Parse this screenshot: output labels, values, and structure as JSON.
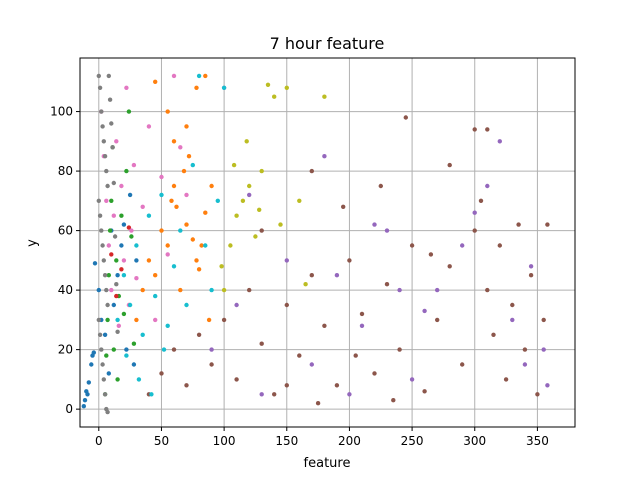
{
  "chart_data": {
    "type": "scatter",
    "title": "7 hour feature",
    "xlabel": "feature",
    "ylabel": "y",
    "xlim": [
      -15,
      380
    ],
    "ylim": [
      -6,
      118
    ],
    "xticks": [
      0,
      50,
      100,
      150,
      200,
      250,
      300,
      350
    ],
    "yticks": [
      0,
      20,
      40,
      60,
      80,
      100
    ],
    "grid": true,
    "legend": "none",
    "series": [
      {
        "color": "#1f77b4",
        "points": [
          [
            -12,
            1
          ],
          [
            -11,
            3
          ],
          [
            -10,
            6
          ],
          [
            -9,
            5
          ],
          [
            -8,
            9
          ],
          [
            -6,
            15
          ],
          [
            -5,
            18
          ],
          [
            -4,
            19
          ],
          [
            -3,
            49
          ],
          [
            0,
            40
          ],
          [
            2,
            30
          ],
          [
            5,
            25
          ],
          [
            8,
            12
          ],
          [
            10,
            60
          ],
          [
            12,
            35
          ],
          [
            15,
            45
          ],
          [
            18,
            55
          ],
          [
            20,
            62
          ],
          [
            22,
            20
          ],
          [
            25,
            72
          ],
          [
            28,
            15
          ],
          [
            30,
            50
          ]
        ]
      },
      {
        "color": "#ff7f0e",
        "points": [
          [
            30,
            30
          ],
          [
            35,
            40
          ],
          [
            40,
            50
          ],
          [
            45,
            45
          ],
          [
            50,
            60
          ],
          [
            55,
            55
          ],
          [
            58,
            70
          ],
          [
            60,
            75
          ],
          [
            62,
            68
          ],
          [
            65,
            40
          ],
          [
            68,
            80
          ],
          [
            70,
            62
          ],
          [
            72,
            85
          ],
          [
            75,
            57
          ],
          [
            78,
            50
          ],
          [
            80,
            47
          ],
          [
            82,
            55
          ],
          [
            85,
            66
          ],
          [
            88,
            30
          ],
          [
            90,
            75
          ],
          [
            45,
            110
          ],
          [
            60,
            90
          ],
          [
            70,
            95
          ],
          [
            85,
            112
          ],
          [
            78,
            108
          ],
          [
            55,
            100
          ]
        ]
      },
      {
        "color": "#2ca02c",
        "points": [
          [
            5,
            5
          ],
          [
            6,
            18
          ],
          [
            7,
            30
          ],
          [
            8,
            45
          ],
          [
            9,
            60
          ],
          [
            10,
            70
          ],
          [
            11,
            88
          ],
          [
            12,
            20
          ],
          [
            14,
            50
          ],
          [
            15,
            10
          ],
          [
            16,
            38
          ],
          [
            18,
            65
          ],
          [
            20,
            32
          ],
          [
            22,
            80
          ],
          [
            24,
            100
          ],
          [
            26,
            58
          ],
          [
            28,
            22
          ]
        ]
      },
      {
        "color": "#d62728",
        "points": [
          [
            10,
            52
          ],
          [
            14,
            38
          ],
          [
            18,
            47
          ],
          [
            24,
            61
          ]
        ]
      },
      {
        "color": "#9467bd",
        "points": [
          [
            90,
            20
          ],
          [
            110,
            35
          ],
          [
            130,
            5
          ],
          [
            150,
            50
          ],
          [
            170,
            15
          ],
          [
            190,
            45
          ],
          [
            210,
            28
          ],
          [
            230,
            60
          ],
          [
            250,
            10
          ],
          [
            270,
            40
          ],
          [
            290,
            55
          ],
          [
            310,
            75
          ],
          [
            330,
            30
          ],
          [
            345,
            48
          ],
          [
            355,
            20
          ],
          [
            358,
            8
          ],
          [
            180,
            85
          ],
          [
            220,
            62
          ],
          [
            260,
            33
          ],
          [
            300,
            66
          ],
          [
            340,
            15
          ],
          [
            120,
            72
          ],
          [
            200,
            5
          ],
          [
            240,
            40
          ],
          [
            320,
            90
          ]
        ]
      },
      {
        "color": "#8c564b",
        "points": [
          [
            40,
            5
          ],
          [
            50,
            12
          ],
          [
            60,
            20
          ],
          [
            70,
            8
          ],
          [
            80,
            25
          ],
          [
            90,
            15
          ],
          [
            100,
            30
          ],
          [
            110,
            10
          ],
          [
            120,
            40
          ],
          [
            130,
            22
          ],
          [
            140,
            5
          ],
          [
            150,
            35
          ],
          [
            160,
            18
          ],
          [
            170,
            45
          ],
          [
            180,
            28
          ],
          [
            190,
            8
          ],
          [
            200,
            50
          ],
          [
            210,
            32
          ],
          [
            220,
            12
          ],
          [
            230,
            42
          ],
          [
            240,
            20
          ],
          [
            250,
            55
          ],
          [
            260,
            6
          ],
          [
            270,
            30
          ],
          [
            280,
            48
          ],
          [
            290,
            15
          ],
          [
            300,
            60
          ],
          [
            305,
            70
          ],
          [
            310,
            40
          ],
          [
            315,
            25
          ],
          [
            320,
            55
          ],
          [
            325,
            10
          ],
          [
            330,
            35
          ],
          [
            335,
            62
          ],
          [
            340,
            20
          ],
          [
            345,
            45
          ],
          [
            350,
            5
          ],
          [
            355,
            30
          ],
          [
            358,
            62
          ],
          [
            300,
            94
          ],
          [
            310,
            94
          ],
          [
            245,
            98
          ],
          [
            170,
            80
          ],
          [
            130,
            60
          ],
          [
            225,
            75
          ],
          [
            280,
            82
          ],
          [
            195,
            68
          ],
          [
            265,
            52
          ],
          [
            150,
            8
          ],
          [
            175,
            2
          ],
          [
            205,
            18
          ],
          [
            235,
            3
          ]
        ]
      },
      {
        "color": "#e377c2",
        "points": [
          [
            2,
            100
          ],
          [
            4,
            85
          ],
          [
            6,
            70
          ],
          [
            8,
            55
          ],
          [
            10,
            40
          ],
          [
            12,
            65
          ],
          [
            14,
            90
          ],
          [
            16,
            28
          ],
          [
            18,
            75
          ],
          [
            20,
            50
          ],
          [
            22,
            108
          ],
          [
            24,
            35
          ],
          [
            26,
            60
          ],
          [
            28,
            82
          ],
          [
            30,
            44
          ],
          [
            35,
            68
          ],
          [
            40,
            95
          ],
          [
            45,
            30
          ],
          [
            50,
            78
          ],
          [
            55,
            52
          ],
          [
            60,
            112
          ],
          [
            65,
            88
          ],
          [
            70,
            72
          ],
          [
            100,
            108
          ]
        ]
      },
      {
        "color": "#7f7f7f",
        "points": [
          [
            0,
            112
          ],
          [
            1,
            108
          ],
          [
            2,
            100
          ],
          [
            3,
            95
          ],
          [
            4,
            90
          ],
          [
            5,
            85
          ],
          [
            6,
            80
          ],
          [
            7,
            75
          ],
          [
            0,
            70
          ],
          [
            1,
            65
          ],
          [
            2,
            60
          ],
          [
            3,
            55
          ],
          [
            4,
            50
          ],
          [
            5,
            45
          ],
          [
            6,
            40
          ],
          [
            7,
            35
          ],
          [
            0,
            30
          ],
          [
            1,
            25
          ],
          [
            2,
            20
          ],
          [
            3,
            15
          ],
          [
            4,
            10
          ],
          [
            5,
            5
          ],
          [
            6,
            0
          ],
          [
            7,
            -1
          ],
          [
            8,
            112
          ],
          [
            9,
            104
          ],
          [
            10,
            96
          ],
          [
            11,
            88
          ],
          [
            12,
            76
          ],
          [
            13,
            58
          ],
          [
            14,
            42
          ],
          [
            15,
            26
          ]
        ]
      },
      {
        "color": "#bcbd22",
        "points": [
          [
            100,
            40
          ],
          [
            105,
            55
          ],
          [
            110,
            65
          ],
          [
            115,
            70
          ],
          [
            120,
            75
          ],
          [
            125,
            58
          ],
          [
            130,
            80
          ],
          [
            135,
            109
          ],
          [
            140,
            105
          ],
          [
            145,
            62
          ],
          [
            150,
            108
          ],
          [
            160,
            70
          ],
          [
            165,
            42
          ],
          [
            180,
            105
          ],
          [
            108,
            82
          ],
          [
            118,
            90
          ],
          [
            128,
            67
          ],
          [
            98,
            48
          ]
        ]
      },
      {
        "color": "#17becf",
        "points": [
          [
            15,
            30
          ],
          [
            20,
            45
          ],
          [
            25,
            35
          ],
          [
            30,
            55
          ],
          [
            35,
            25
          ],
          [
            40,
            65
          ],
          [
            45,
            38
          ],
          [
            50,
            72
          ],
          [
            55,
            28
          ],
          [
            60,
            48
          ],
          [
            65,
            60
          ],
          [
            70,
            35
          ],
          [
            75,
            82
          ],
          [
            80,
            112
          ],
          [
            85,
            55
          ],
          [
            90,
            40
          ],
          [
            95,
            70
          ],
          [
            100,
            108
          ],
          [
            22,
            18
          ],
          [
            32,
            10
          ],
          [
            42,
            5
          ],
          [
            52,
            20
          ]
        ]
      }
    ]
  }
}
